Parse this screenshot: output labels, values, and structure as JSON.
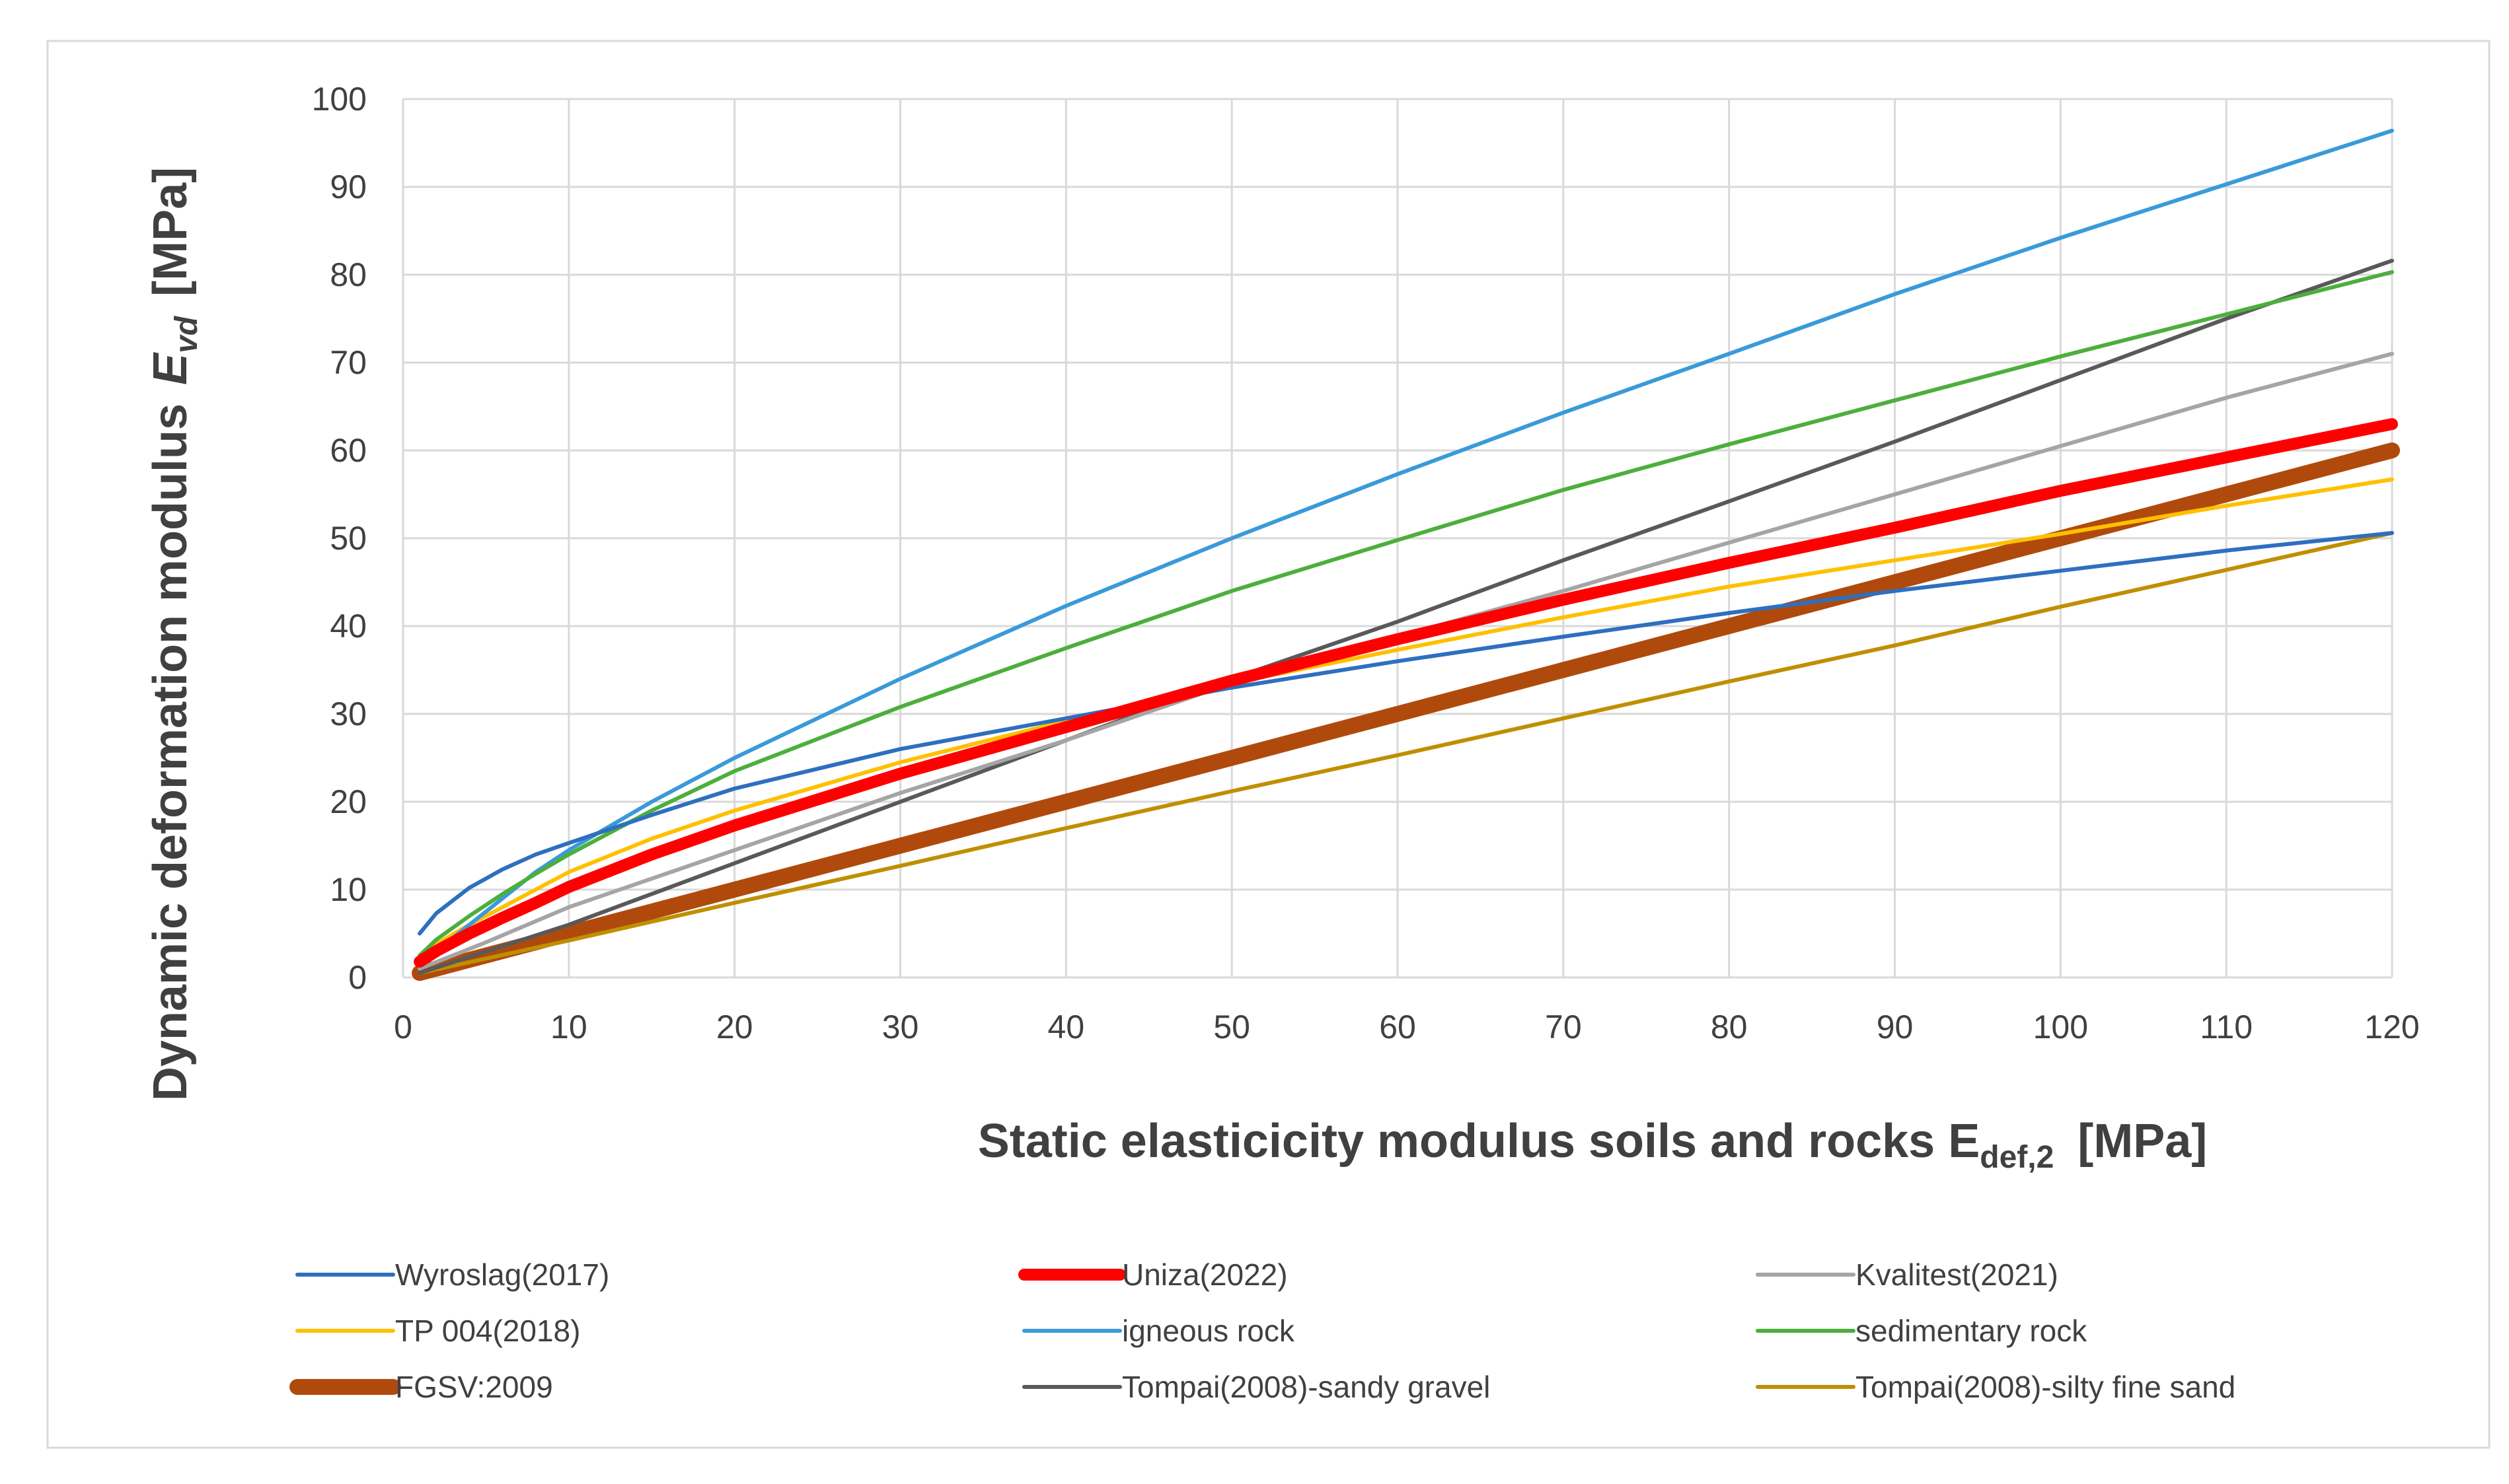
{
  "chart_data": {
    "type": "line",
    "title": "",
    "xlabel": {
      "main": "Static elasticicity modulus soils and rocks E",
      "sub": "def,2",
      "unit": "[MPa]"
    },
    "ylabel": {
      "main": "Dynamic deformation modulus",
      "symbol": "E",
      "sub": "vd",
      "unit": "[MPa]"
    },
    "xlim": [
      0,
      120
    ],
    "ylim": [
      0,
      100
    ],
    "xticks": [
      0,
      10,
      20,
      30,
      40,
      50,
      60,
      70,
      80,
      90,
      100,
      110,
      120
    ],
    "yticks": [
      0,
      10,
      20,
      30,
      40,
      50,
      60,
      70,
      80,
      90,
      100
    ],
    "grid": true,
    "legend_position": "bottom",
    "series": [
      {
        "name": "Wyroslag(2017)",
        "color": "#2E6FC0",
        "weight": "normal",
        "x": [
          1,
          2,
          4,
          6,
          8,
          10,
          15,
          20,
          30,
          40,
          50,
          60,
          70,
          80,
          90,
          100,
          110,
          120
        ],
        "y": [
          5,
          7.3,
          10.2,
          12.3,
          14,
          15.3,
          18.5,
          21.5,
          26,
          29.5,
          33,
          36,
          38.8,
          41.5,
          44,
          46.3,
          48.6,
          50.6
        ]
      },
      {
        "name": "Uniza(2022)",
        "color": "#FF0000",
        "weight": "bold",
        "x": [
          1,
          2,
          4,
          6,
          8,
          10,
          15,
          20,
          30,
          40,
          50,
          60,
          70,
          80,
          90,
          100,
          110,
          120
        ],
        "y": [
          1.8,
          3,
          5,
          6.8,
          8.5,
          10.3,
          14,
          17.3,
          23.2,
          28.5,
          33.8,
          38.5,
          43,
          47.2,
          51.2,
          55.4,
          59.2,
          63
        ]
      },
      {
        "name": "Kvalitest(2021)",
        "color": "#A5A5A5",
        "weight": "normal",
        "x": [
          1,
          5,
          10,
          20,
          30,
          40,
          50,
          60,
          70,
          80,
          90,
          100,
          110,
          120
        ],
        "y": [
          1,
          4,
          8,
          14.5,
          21,
          27,
          33.5,
          38.8,
          44,
          49.5,
          55,
          60.5,
          66,
          71
        ]
      },
      {
        "name": "TP 004(2018)",
        "color": "#FFC000",
        "weight": "normal",
        "x": [
          1,
          2,
          4,
          6,
          8,
          10,
          15,
          20,
          30,
          40,
          50,
          60,
          70,
          80,
          90,
          100,
          110,
          120
        ],
        "y": [
          2.5,
          3.8,
          6,
          8,
          10,
          12,
          15.8,
          19,
          24.5,
          29.2,
          33.5,
          37.3,
          41,
          44.5,
          47.5,
          50.5,
          53.7,
          56.7
        ]
      },
      {
        "name": "igneous rock",
        "color": "#3A9AD9",
        "weight": "normal",
        "x": [
          1,
          2,
          4,
          6,
          8,
          10,
          15,
          20,
          30,
          40,
          50,
          60,
          70,
          80,
          90,
          100,
          110,
          120
        ],
        "y": [
          1.5,
          3,
          6,
          9,
          12,
          14.5,
          20,
          25,
          34,
          42.3,
          50,
          57.3,
          64.3,
          71,
          77.8,
          84.2,
          90.3,
          96.4
        ]
      },
      {
        "name": "sedimentary rock",
        "color": "#4CAF3C",
        "weight": "normal",
        "x": [
          1,
          2,
          4,
          6,
          8,
          10,
          15,
          20,
          30,
          40,
          50,
          60,
          70,
          80,
          90,
          100,
          110,
          120
        ],
        "y": [
          2.5,
          4.3,
          7,
          9.5,
          11.8,
          14,
          19,
          23.5,
          30.8,
          37.5,
          44,
          49.8,
          55.5,
          60.7,
          65.7,
          70.7,
          75.5,
          80.3
        ]
      },
      {
        "name": "FGSV:2009",
        "color": "#B04A0C",
        "weight": "heavy",
        "x": [
          1,
          10,
          20,
          30,
          40,
          50,
          60,
          70,
          80,
          90,
          100,
          110,
          120
        ],
        "y": [
          0.5,
          5,
          10,
          15,
          20,
          25,
          30,
          35,
          40,
          45,
          50,
          55,
          60
        ]
      },
      {
        "name": "Tompai(2008)-sandy gravel",
        "color": "#595959",
        "weight": "normal",
        "x": [
          1,
          10,
          20,
          30,
          40,
          50,
          60,
          70,
          80,
          90,
          100,
          110,
          120
        ],
        "y": [
          0.5,
          6,
          13,
          20,
          27,
          34,
          40.5,
          47.5,
          54.2,
          61,
          68,
          75,
          81.6
        ]
      },
      {
        "name": "Tompai(2008)-silty fine sand",
        "color": "#BF8F00",
        "weight": "normal",
        "x": [
          1,
          10,
          20,
          30,
          40,
          50,
          60,
          70,
          80,
          90,
          100,
          110,
          120
        ],
        "y": [
          0.5,
          4.2,
          8.5,
          12.7,
          17,
          21.2,
          25.3,
          29.5,
          33.7,
          37.8,
          42.2,
          46.4,
          50.6
        ]
      }
    ]
  }
}
